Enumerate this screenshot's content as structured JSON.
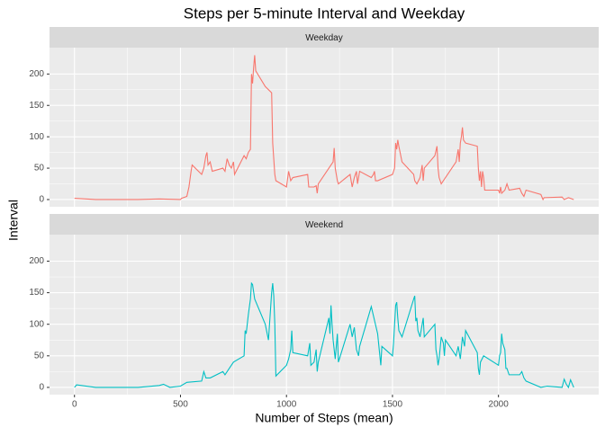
{
  "chart_data": {
    "type": "line",
    "facet": true,
    "grid": true,
    "title": "Steps per 5-minute Interval and Weekday",
    "xlabel": "Number of Steps (mean)",
    "ylabel": "Interval",
    "xlim": [
      -117.75,
      2472.75
    ],
    "xticks": [
      0,
      500,
      1000,
      1500,
      2000
    ],
    "ylim": [
      -11.5,
      242
    ],
    "yticks": [
      0,
      50,
      100,
      150,
      200
    ],
    "series": [
      {
        "name": "Weekday",
        "color": "#f8766d",
        "x": [
          0,
          100,
          200,
          300,
          400,
          500,
          505,
          530,
          540,
          550,
          555,
          600,
          610,
          620,
          625,
          630,
          640,
          650,
          700,
          710,
          720,
          730,
          740,
          750,
          755,
          800,
          810,
          820,
          830,
          835,
          840,
          845,
          850,
          855,
          900,
          930,
          935,
          940,
          945,
          950,
          1000,
          1010,
          1020,
          1030,
          1100,
          1105,
          1130,
          1140,
          1145,
          1150,
          1200,
          1210,
          1220,
          1225,
          1230,
          1240,
          1245,
          1300,
          1310,
          1320,
          1330,
          1335,
          1345,
          1400,
          1410,
          1415,
          1420,
          1430,
          1500,
          1510,
          1515,
          1520,
          1525,
          1530,
          1545,
          1600,
          1605,
          1615,
          1630,
          1640,
          1645,
          1650,
          1700,
          1710,
          1715,
          1720,
          1730,
          1800,
          1805,
          1810,
          1815,
          1820,
          1825,
          1830,
          1835,
          1845,
          1900,
          1905,
          1910,
          1915,
          1920,
          1925,
          1930,
          1935,
          2000,
          2005,
          2010,
          2015,
          2030,
          2040,
          2050,
          2100,
          2110,
          2120,
          2130,
          2200,
          2210,
          2215,
          2300,
          2310,
          2330,
          2355
        ],
        "values": [
          2,
          0,
          0,
          0,
          1,
          0,
          2,
          5,
          20,
          45,
          55,
          40,
          50,
          70,
          75,
          55,
          60,
          45,
          50,
          45,
          65,
          55,
          50,
          60,
          40,
          70,
          65,
          75,
          80,
          200,
          185,
          210,
          230,
          205,
          180,
          170,
          90,
          65,
          40,
          30,
          20,
          45,
          30,
          35,
          40,
          20,
          20,
          22,
          10,
          25,
          50,
          55,
          60,
          82,
          50,
          30,
          25,
          40,
          20,
          35,
          45,
          25,
          45,
          35,
          40,
          45,
          30,
          30,
          40,
          50,
          90,
          80,
          95,
          85,
          60,
          40,
          30,
          25,
          35,
          55,
          30,
          50,
          70,
          85,
          50,
          35,
          25,
          60,
          70,
          80,
          60,
          90,
          100,
          115,
          95,
          90,
          85,
          50,
          30,
          45,
          20,
          45,
          35,
          15,
          15,
          10,
          20,
          10,
          15,
          25,
          15,
          18,
          10,
          5,
          15,
          8,
          0,
          3,
          4,
          0,
          3,
          0
        ]
      },
      {
        "name": "Weekend",
        "color": "#00bfc4",
        "x": [
          0,
          10,
          100,
          200,
          300,
          400,
          420,
          450,
          500,
          530,
          600,
          610,
          620,
          640,
          700,
          710,
          730,
          750,
          800,
          805,
          810,
          820,
          830,
          835,
          840,
          850,
          900,
          915,
          930,
          935,
          940,
          945,
          950,
          1000,
          1010,
          1020,
          1025,
          1030,
          1100,
          1110,
          1115,
          1130,
          1140,
          1145,
          1150,
          1200,
          1205,
          1210,
          1215,
          1220,
          1225,
          1230,
          1240,
          1245,
          1300,
          1310,
          1320,
          1330,
          1340,
          1345,
          1400,
          1430,
          1445,
          1450,
          1500,
          1505,
          1515,
          1520,
          1525,
          1530,
          1545,
          1600,
          1605,
          1610,
          1615,
          1620,
          1630,
          1645,
          1650,
          1700,
          1705,
          1710,
          1715,
          1720,
          1730,
          1740,
          1745,
          1750,
          1800,
          1810,
          1820,
          1830,
          1840,
          1845,
          1900,
          1905,
          1910,
          1915,
          1930,
          2000,
          2005,
          2010,
          2015,
          2020,
          2030,
          2035,
          2040,
          2050,
          2100,
          2110,
          2120,
          2130,
          2200,
          2230,
          2300,
          2310,
          2320,
          2330,
          2340,
          2355
        ],
        "values": [
          0,
          4,
          0,
          0,
          0,
          3,
          5,
          0,
          2,
          8,
          10,
          25,
          15,
          15,
          25,
          20,
          30,
          40,
          50,
          90,
          85,
          115,
          140,
          165,
          163,
          140,
          100,
          75,
          150,
          165,
          145,
          100,
          18,
          35,
          45,
          60,
          90,
          55,
          50,
          70,
          35,
          40,
          60,
          25,
          40,
          110,
          85,
          130,
          100,
          75,
          60,
          45,
          85,
          40,
          100,
          80,
          95,
          60,
          50,
          65,
          128,
          85,
          35,
          65,
          50,
          70,
          130,
          135,
          110,
          90,
          80,
          140,
          145,
          105,
          110,
          90,
          80,
          110,
          80,
          100,
          60,
          50,
          35,
          45,
          80,
          70,
          50,
          75,
          50,
          65,
          45,
          80,
          65,
          90,
          55,
          30,
          20,
          40,
          50,
          35,
          50,
          55,
          85,
          70,
          60,
          30,
          30,
          20,
          20,
          25,
          15,
          10,
          0,
          2,
          0,
          13,
          5,
          0,
          12,
          0
        ]
      }
    ]
  }
}
